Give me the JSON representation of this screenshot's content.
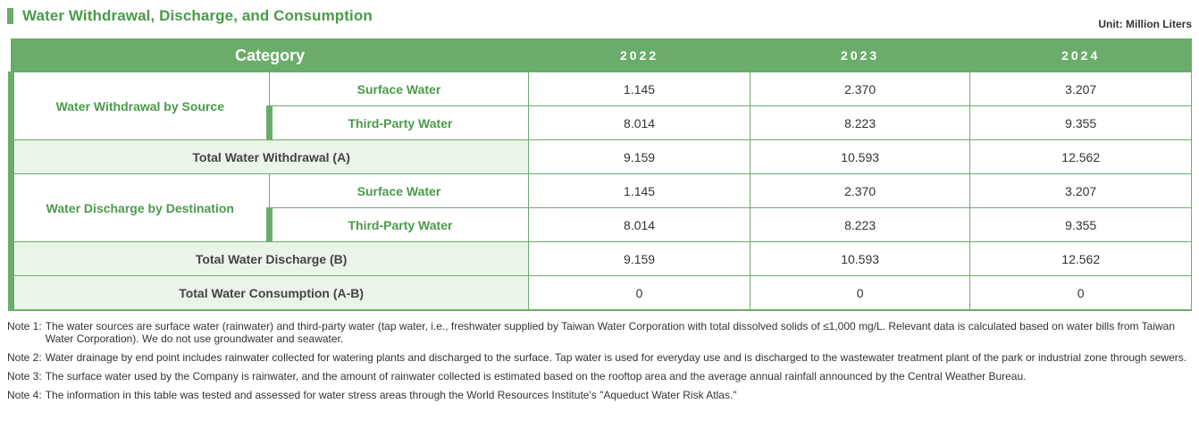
{
  "title": "Water Withdrawal, Discharge, and Consumption",
  "unit": "Unit: Million Liters",
  "table": {
    "header": {
      "category": "Category",
      "years": [
        "2022",
        "2023",
        "2024"
      ]
    },
    "groups": {
      "withdrawal": "Water Withdrawal by Source",
      "discharge": "Water Discharge by Destination"
    },
    "rows": [
      {
        "label": "Surface Water",
        "values": [
          "1.145",
          "2.370",
          "3.207"
        ]
      },
      {
        "label": "Third-Party Water",
        "values": [
          "8.014",
          "8.223",
          "9.355"
        ]
      },
      {
        "label": "Total Water Withdrawal (A)",
        "values": [
          "9.159",
          "10.593",
          "12.562"
        ]
      },
      {
        "label": "Surface Water",
        "values": [
          "1.145",
          "2.370",
          "3.207"
        ]
      },
      {
        "label": "Third-Party Water",
        "values": [
          "8.014",
          "8.223",
          "9.355"
        ]
      },
      {
        "label": "Total Water Discharge (B)",
        "values": [
          "9.159",
          "10.593",
          "12.562"
        ]
      },
      {
        "label": "Total Water Consumption (A-B)",
        "values": [
          "0",
          "0",
          "0"
        ]
      }
    ]
  },
  "notes": [
    {
      "label": "Note 1:",
      "text": "The water sources are surface water (rainwater) and third-party water (tap water, i.e., freshwater supplied by Taiwan Water Corporation with total dissolved solids of ≤1,000 mg/L. Relevant data is calculated based on water bills from Taiwan Water Corporation). We do not use groundwater and seawater."
    },
    {
      "label": "Note 2:",
      "text": "Water drainage by end point includes rainwater collected for watering plants and discharged to the surface. Tap water is used for everyday use and is discharged to the wastewater treatment plant of the park or industrial zone through sewers."
    },
    {
      "label": "Note 3:",
      "text": "The surface water used by the Company is rainwater, and the amount of rainwater collected is estimated based on the rooftop area and the average annual rainfall announced by the Central Weather Bureau."
    },
    {
      "label": "Note 4:",
      "text": "The information in this table was tested and assessed for water stress areas through the World Resources Institute's \"Aqueduct Water Risk Atlas.\""
    }
  ]
}
